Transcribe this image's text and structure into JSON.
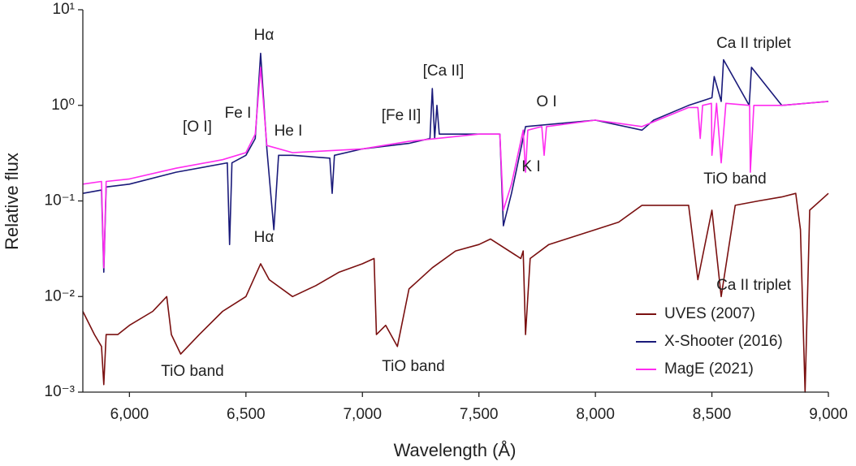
{
  "chart_data": {
    "type": "line",
    "x_label": "Wavelength (Å)",
    "y_label": "Relative flux",
    "log_y": true,
    "xlim": [
      5800,
      9000
    ],
    "ylim": [
      0.001,
      10
    ],
    "xticks": [
      {
        "value": 6000,
        "label": "6,000"
      },
      {
        "value": 6500,
        "label": "6,500"
      },
      {
        "value": 7000,
        "label": "7,000"
      },
      {
        "value": 7500,
        "label": "7,500"
      },
      {
        "value": 8000,
        "label": "8,000"
      },
      {
        "value": 8500,
        "label": "8,500"
      },
      {
        "value": 9000,
        "label": "9,000"
      }
    ],
    "yticks": [
      {
        "value": 0.001,
        "label": "10⁻³"
      },
      {
        "value": 0.01,
        "label": "10⁻²"
      },
      {
        "value": 0.1,
        "label": "10⁻¹"
      },
      {
        "value": 1,
        "label": "10⁰"
      },
      {
        "value": 10,
        "label": "10¹"
      }
    ],
    "legend": "lower right",
    "series": [
      {
        "name": "UVES (2007)",
        "color": "#7a1010",
        "x": [
          5800,
          5850,
          5880,
          5890,
          5900,
          5950,
          6000,
          6100,
          6160,
          6180,
          6220,
          6300,
          6400,
          6500,
          6563,
          6600,
          6700,
          6800,
          6900,
          7000,
          7050,
          7060,
          7100,
          7150,
          7200,
          7300,
          7400,
          7500,
          7550,
          7680,
          7690,
          7700,
          7720,
          7800,
          8000,
          8100,
          8200,
          8400,
          8440,
          8500,
          8540,
          8600,
          8700,
          8800,
          8860,
          8880,
          8900,
          8920,
          9000
        ],
        "values": [
          0.007,
          0.004,
          0.003,
          0.0012,
          0.004,
          0.004,
          0.005,
          0.007,
          0.01,
          0.004,
          0.0025,
          0.004,
          0.007,
          0.01,
          0.022,
          0.015,
          0.01,
          0.013,
          0.018,
          0.022,
          0.025,
          0.004,
          0.005,
          0.003,
          0.012,
          0.02,
          0.03,
          0.035,
          0.04,
          0.025,
          0.03,
          0.004,
          0.025,
          0.035,
          0.05,
          0.06,
          0.09,
          0.09,
          0.015,
          0.08,
          0.01,
          0.09,
          0.1,
          0.11,
          0.12,
          0.05,
          0.001,
          0.08,
          0.12
        ]
      },
      {
        "name": "X-Shooter (2016)",
        "color": "#1a1a7a",
        "x": [
          5800,
          5880,
          5890,
          5900,
          6000,
          6200,
          6420,
          6430,
          6440,
          6500,
          6540,
          6563,
          6590,
          6620,
          6640,
          6700,
          6860,
          6870,
          6880,
          7000,
          7200,
          7290,
          7300,
          7310,
          7320,
          7330,
          7500,
          7590,
          7605,
          7640,
          7700,
          8000,
          8200,
          8250,
          8400,
          8500,
          8510,
          8540,
          8550,
          8660,
          8670,
          8800,
          9000
        ],
        "values": [
          0.12,
          0.13,
          0.018,
          0.14,
          0.15,
          0.2,
          0.25,
          0.035,
          0.25,
          0.3,
          0.45,
          3.5,
          0.35,
          0.05,
          0.3,
          0.3,
          0.28,
          0.12,
          0.3,
          0.35,
          0.4,
          0.45,
          1.5,
          0.45,
          1.0,
          0.5,
          0.5,
          0.5,
          0.055,
          0.12,
          0.6,
          0.7,
          0.55,
          0.7,
          1.0,
          1.2,
          2.0,
          1.1,
          3.0,
          1.0,
          2.5,
          1.0,
          1.1
        ]
      },
      {
        "name": "MagE (2021)",
        "color": "#ff2bf0",
        "x": [
          5800,
          5880,
          5890,
          5900,
          6000,
          6200,
          6400,
          6500,
          6540,
          6563,
          6590,
          6700,
          7000,
          7200,
          7500,
          7590,
          7605,
          7640,
          7690,
          7700,
          7710,
          7770,
          7780,
          7790,
          8000,
          8200,
          8400,
          8440,
          8450,
          8460,
          8498,
          8500,
          8520,
          8540,
          8560,
          8662,
          8665,
          8680,
          8800,
          9000
        ],
        "values": [
          0.15,
          0.16,
          0.02,
          0.16,
          0.17,
          0.22,
          0.27,
          0.32,
          0.5,
          2.5,
          0.38,
          0.32,
          0.35,
          0.42,
          0.5,
          0.5,
          0.08,
          0.15,
          0.55,
          0.2,
          0.55,
          0.6,
          0.3,
          0.6,
          0.7,
          0.6,
          0.95,
          0.95,
          0.45,
          1.0,
          1.05,
          0.3,
          1.05,
          0.25,
          1.05,
          1.0,
          0.2,
          1.0,
          1.0,
          1.1
        ]
      }
    ],
    "annotations": [
      "Hα",
      "[O I]",
      "Fe I",
      "He I",
      "[Fe II]",
      "[Ca II]",
      "O I",
      "K I",
      "Ca II triplet",
      "TiO band",
      "Hα",
      "Ca II triplet",
      "TiO band",
      "TiO band"
    ]
  }
}
